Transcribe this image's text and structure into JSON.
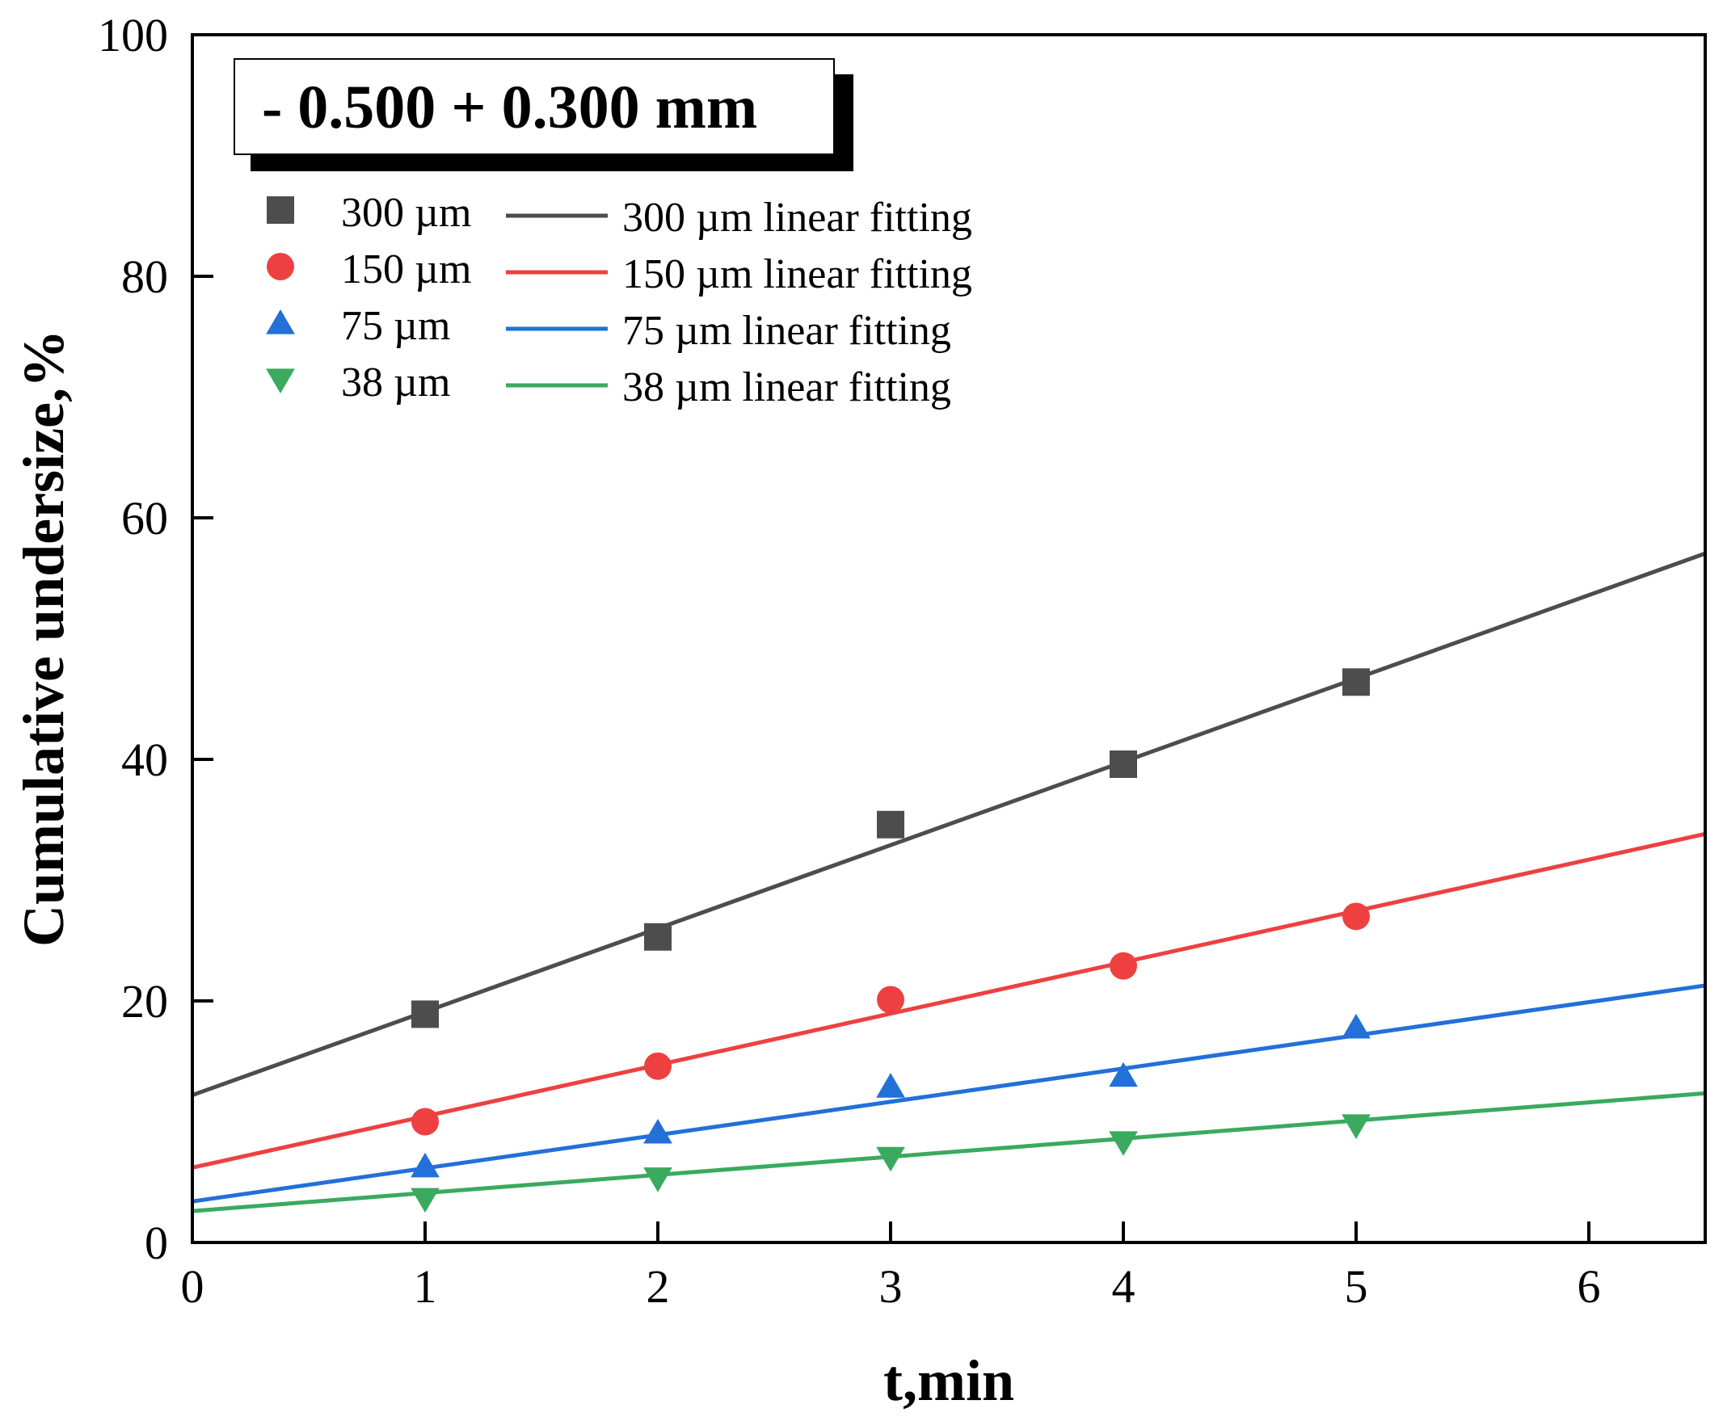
{
  "chart_data": {
    "type": "scatter",
    "annotation": "- 0.500 + 0.300 mm",
    "xlabel": "t,min",
    "ylabel": "Cumulative undersize,%",
    "xlim": [
      0,
      6.5
    ],
    "ylim": [
      0,
      100
    ],
    "xticks": [
      0,
      1,
      2,
      3,
      4,
      5,
      6
    ],
    "yticks": [
      0,
      20,
      40,
      60,
      80,
      100
    ],
    "grid": false,
    "legend_position": "top-left",
    "x": [
      1,
      2,
      3,
      4,
      5
    ],
    "series": [
      {
        "name": "300 µm",
        "fit_name": "300 µm linear fitting",
        "marker": "square",
        "color": "#4d4d4d",
        "values": [
          18.9,
          25.3,
          34.6,
          39.6,
          46.4
        ],
        "fit": {
          "intercept": 12.2,
          "slope": 6.9
        }
      },
      {
        "name": "150 µm",
        "fit_name": "150 µm linear fitting",
        "marker": "circle",
        "color": "#ee4040",
        "values": [
          10.0,
          14.6,
          20.1,
          22.9,
          27.0
        ],
        "fit": {
          "intercept": 6.2,
          "slope": 4.25
        }
      },
      {
        "name": "75 µm",
        "fit_name": "75 µm linear fitting",
        "marker": "triangle-up",
        "color": "#2270d8",
        "values": [
          6.3,
          9.1,
          12.9,
          13.8,
          17.8
        ],
        "fit": {
          "intercept": 3.4,
          "slope": 2.75
        }
      },
      {
        "name": "38 µm",
        "fit_name": "38 µm linear fitting",
        "marker": "triangle-down",
        "color": "#3aaa5f",
        "values": [
          3.6,
          5.3,
          7.0,
          8.3,
          9.7
        ],
        "fit": {
          "intercept": 2.6,
          "slope": 1.5
        }
      }
    ]
  }
}
